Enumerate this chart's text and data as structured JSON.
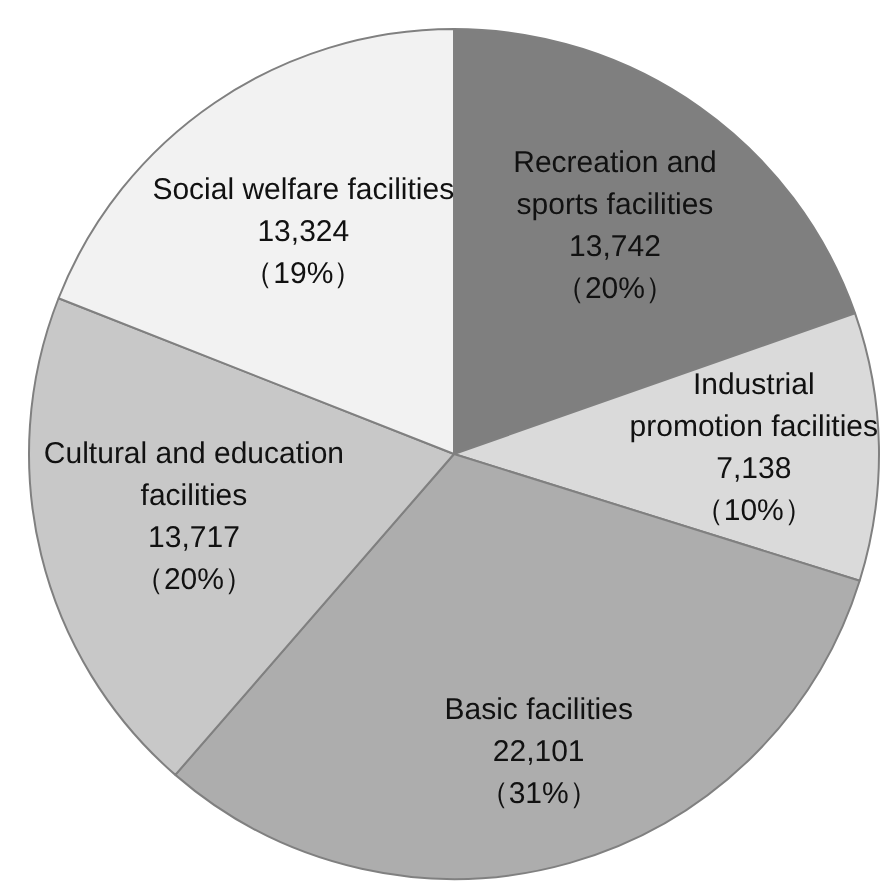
{
  "chart_data": {
    "type": "pie",
    "categories": [
      "Recreation and sports facilities",
      "Industrial promotion facilities",
      "Basic facilities",
      "Cultural and education facilities",
      "Social welfare facilities"
    ],
    "values": [
      13742,
      7138,
      22101,
      13717,
      13324
    ],
    "colors": [
      "#7f7f7f",
      "#dadada",
      "#adadad",
      "#c8c8c8",
      "#f2f2f2"
    ],
    "value_labels": [
      "13,742 （20%）",
      "7,138 （10%）",
      "22,101 （31%）",
      "13,717 （20%）",
      "13,324 （19%）"
    ]
  }
}
